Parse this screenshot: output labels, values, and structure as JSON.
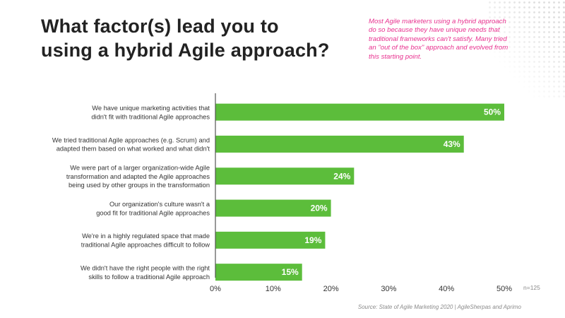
{
  "title_lines": [
    "What factor(s) lead you to",
    "using a hybrid Agile approach?"
  ],
  "note": "Most Agile marketers using a hybrid approach do so because they have unique needs that traditional frameworks can't satisfy. Many tried an \"out of the box\" approach and evolved from this starting point.",
  "n_label": "n=125",
  "source": "Source: State of Agile Marketing 2020 | AgileSherpas and Aprimo",
  "colors": {
    "bar": "#5cbd3b",
    "axis": "#555555",
    "note": "#e8318f"
  },
  "chart_data": {
    "type": "bar",
    "orientation": "horizontal",
    "categories": [
      [
        "We have unique marketing activities that",
        "didn't fit with traditional Agile approaches"
      ],
      [
        "We tried traditional Agile approaches (e.g. Scrum) and",
        "adapted them based on what worked and what didn't"
      ],
      [
        "We were part of a larger organization-wide Agile",
        "transformation and adapted the Agile approaches",
        "being used by other groups in the transformation"
      ],
      [
        "Our organization's culture wasn't a",
        "good fit for traditional Agile approaches"
      ],
      [
        "We're in a highly regulated space that made",
        "traditional Agile approaches difficult to follow"
      ],
      [
        "We didn't have the right people with the right",
        "skills to follow a traditional Agile approach"
      ]
    ],
    "values": [
      50,
      43,
      24,
      20,
      19,
      15
    ],
    "value_labels": [
      "50%",
      "43%",
      "24%",
      "20%",
      "19%",
      "15%"
    ],
    "xlim": [
      0,
      50
    ],
    "xticks": [
      0,
      10,
      20,
      30,
      40,
      50
    ],
    "xtick_labels": [
      "0%",
      "10%",
      "20%",
      "30%",
      "40%",
      "50%"
    ],
    "grid": false
  }
}
